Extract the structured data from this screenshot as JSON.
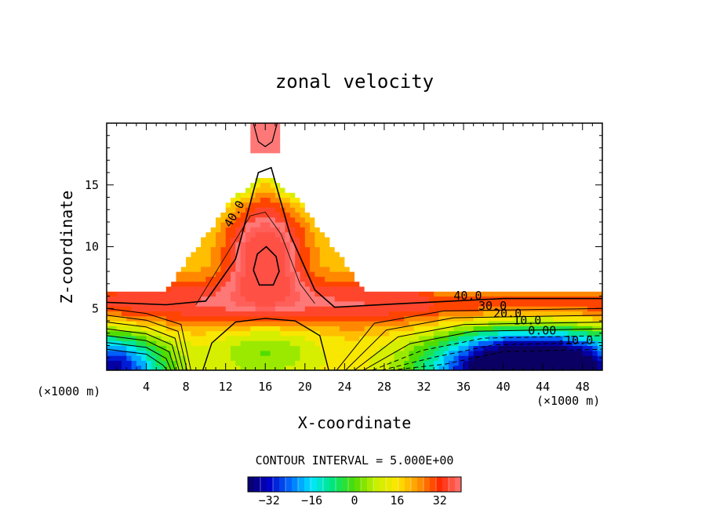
{
  "chart_data": {
    "type": "contour",
    "title": "zonal velocity",
    "xlabel": "X-coordinate",
    "ylabel": "Z-coordinate",
    "x_unit_left": "(×1000 m)",
    "x_unit_right": "(×1000 m)",
    "xlim": [
      0,
      50
    ],
    "ylim": [
      0,
      20
    ],
    "x_ticks": [
      4,
      8,
      12,
      16,
      20,
      24,
      28,
      32,
      36,
      40,
      44,
      48
    ],
    "y_ticks": [
      5,
      10,
      15
    ],
    "x_tick_labels": [
      "4",
      "8",
      "12",
      "16",
      "20",
      "24",
      "28",
      "32",
      "36",
      "40",
      "44",
      "48"
    ],
    "y_tick_labels": [
      "5",
      "10",
      "15"
    ],
    "contour_interval_text": "CONTOUR INTERVAL = 5.000E+00",
    "contour_labels": [
      {
        "text": "40.0",
        "x": 12.5,
        "y": 11.5
      },
      {
        "text": "40.0",
        "x": 35.0,
        "y": 5.7
      },
      {
        "text": "30.0",
        "x": 37.5,
        "y": 4.9
      },
      {
        "text": "20.0",
        "x": 39.0,
        "y": 4.3
      },
      {
        "text": "10.0",
        "x": 41.0,
        "y": 3.7
      },
      {
        "text": "0.00",
        "x": 42.5,
        "y": 2.9
      },
      {
        "text": "-10.0",
        "x": 45.5,
        "y": 2.1
      }
    ],
    "colorbar": {
      "vmin": -40,
      "vmax": 40,
      "tick_values": [
        -32,
        -16,
        0,
        16,
        32
      ],
      "tick_labels": [
        "−32",
        "−16",
        "0",
        "16",
        "32"
      ]
    },
    "field_description": {
      "jet_max_center": [
        16,
        8.3
      ],
      "jet_max_value": 47,
      "min_region_center": [
        43,
        0.8
      ],
      "min_region_value": -38
    }
  },
  "colors": {
    "background": "#ffffff",
    "axes": "#000000"
  }
}
